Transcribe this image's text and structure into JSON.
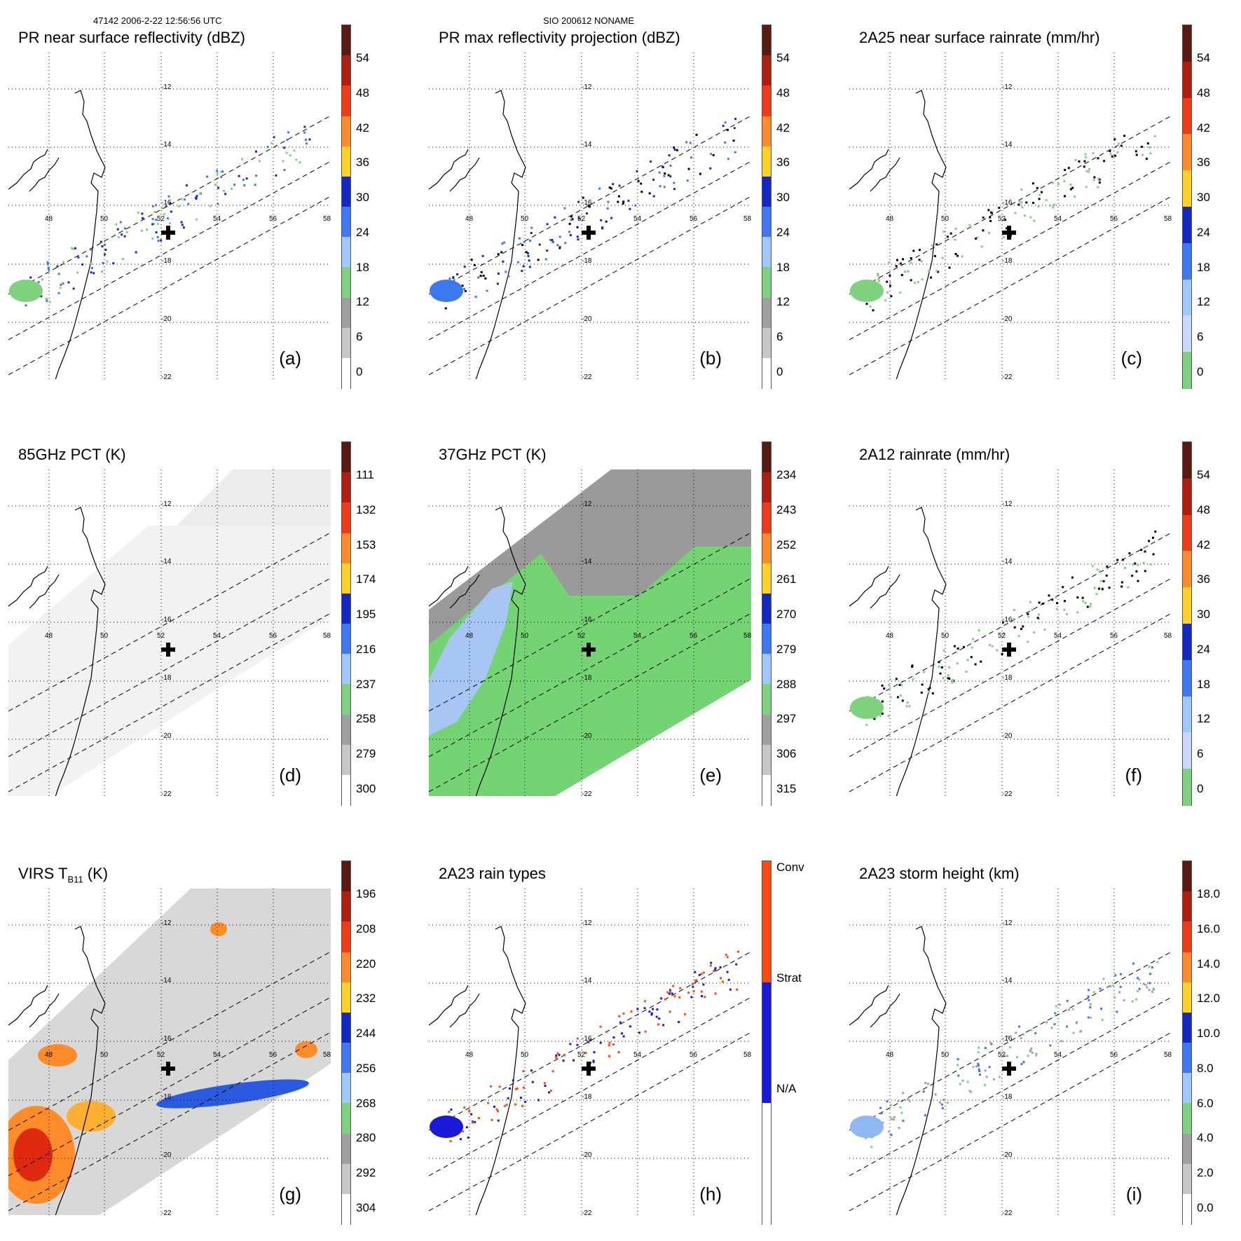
{
  "header": {
    "left": "47142 2006-2-22 12:56:56 UTC",
    "center": "SIO 200612 NONAME"
  },
  "lat_labels": [
    "-12",
    "-14",
    "-16",
    "-18",
    "-20",
    "-22"
  ],
  "lon_labels": [
    "48",
    "50",
    "52",
    "54",
    "56",
    "58"
  ],
  "panels": [
    {
      "id": "a",
      "title": "PR near surface reflectivity (dBZ)",
      "letter": "(a)",
      "ticks": [
        "54",
        "48",
        "42",
        "36",
        "30",
        "24",
        "18",
        "12",
        "6",
        "0"
      ],
      "colorbar": [
        "#5a1a10",
        "#b01e10",
        "#f03c14",
        "#ff8c28",
        "#ffd228",
        "#1428c8",
        "#3c78f0",
        "#a0c8ff",
        "#7ed27e",
        "#a0a0a0",
        "#c8c8c8",
        "#ffffff"
      ]
    },
    {
      "id": "b",
      "title": "PR max reflectivity projection (dBZ)",
      "letter": "(b)",
      "ticks": [
        "54",
        "48",
        "42",
        "36",
        "30",
        "24",
        "18",
        "12",
        "6",
        "0"
      ],
      "colorbar": [
        "#5a1a10",
        "#b01e10",
        "#f03c14",
        "#ff8c28",
        "#ffd228",
        "#1428c8",
        "#3c78f0",
        "#a0c8ff",
        "#7ed27e",
        "#a0a0a0",
        "#c8c8c8",
        "#ffffff"
      ]
    },
    {
      "id": "c",
      "title": "2A25 near surface rainrate (mm/hr)",
      "letter": "(c)",
      "ticks": [
        "54",
        "48",
        "42",
        "36",
        "30",
        "24",
        "18",
        "12",
        "6",
        "0"
      ],
      "colorbar": [
        "#5a1a10",
        "#b01e10",
        "#f03c14",
        "#ff8c28",
        "#ffd228",
        "#1428c8",
        "#3c78f0",
        "#a0c8ff",
        "#c8d8ff",
        "#7ed27e"
      ]
    },
    {
      "id": "d",
      "title": "85GHz PCT (K)",
      "letter": "(d)",
      "ticks": [
        "111",
        "132",
        "153",
        "174",
        "195",
        "216",
        "237",
        "258",
        "279",
        "300"
      ],
      "colorbar": [
        "#5a1a10",
        "#b01e10",
        "#f03c14",
        "#ff8c28",
        "#ffd228",
        "#1428c8",
        "#3c78f0",
        "#a0c8ff",
        "#7ed27e",
        "#a0a0a0",
        "#c8c8c8",
        "#ffffff"
      ]
    },
    {
      "id": "e",
      "title": "37GHz PCT (K)",
      "letter": "(e)",
      "ticks": [
        "234",
        "243",
        "252",
        "261",
        "270",
        "279",
        "288",
        "297",
        "306",
        "315"
      ],
      "colorbar": [
        "#5a1a10",
        "#b01e10",
        "#f03c14",
        "#ff8c28",
        "#ffd228",
        "#1428c8",
        "#3c78f0",
        "#a0c8ff",
        "#7ed27e",
        "#a0a0a0",
        "#c8c8c8",
        "#ffffff"
      ]
    },
    {
      "id": "f",
      "title": "2A12 rainrate (mm/hr)",
      "letter": "(f)",
      "ticks": [
        "54",
        "48",
        "42",
        "36",
        "30",
        "24",
        "18",
        "12",
        "6",
        "0"
      ],
      "colorbar": [
        "#5a1a10",
        "#b01e10",
        "#f03c14",
        "#ff8c28",
        "#ffd228",
        "#1428c8",
        "#3c78f0",
        "#a0c8ff",
        "#c8d8ff",
        "#7ed27e"
      ]
    },
    {
      "id": "g",
      "title": "VIRS T",
      "title_sub": "B11",
      "title_tail": " (K)",
      "letter": "(g)",
      "ticks": [
        "196",
        "208",
        "220",
        "232",
        "244",
        "256",
        "268",
        "280",
        "292",
        "304"
      ],
      "colorbar": [
        "#5a1a10",
        "#b01e10",
        "#f03c14",
        "#ff8c28",
        "#ffd228",
        "#1428c8",
        "#3c78f0",
        "#a0c8ff",
        "#7ed27e",
        "#a0a0a0",
        "#c8c8c8",
        "#ffffff"
      ]
    },
    {
      "id": "h",
      "title": "2A23 rain types",
      "letter": "(h)",
      "ticks": [
        "Conv",
        "Strat",
        "N/A"
      ],
      "colorbar": [
        "#ff4a10",
        "#1a1ad8",
        "#ffffff"
      ]
    },
    {
      "id": "i",
      "title": "2A23 storm height (km)",
      "letter": "(i)",
      "ticks": [
        "18.0",
        "16.0",
        "14.0",
        "12.0",
        "10.0",
        "8.0",
        "6.0",
        "4.0",
        "2.0",
        "0.0"
      ],
      "colorbar": [
        "#5a1a10",
        "#b01e10",
        "#f03c14",
        "#ff8c28",
        "#ffd228",
        "#1428c8",
        "#3c78f0",
        "#a0c8ff",
        "#7ed27e",
        "#a0a0a0",
        "#c8c8c8",
        "#ffffff"
      ]
    }
  ]
}
